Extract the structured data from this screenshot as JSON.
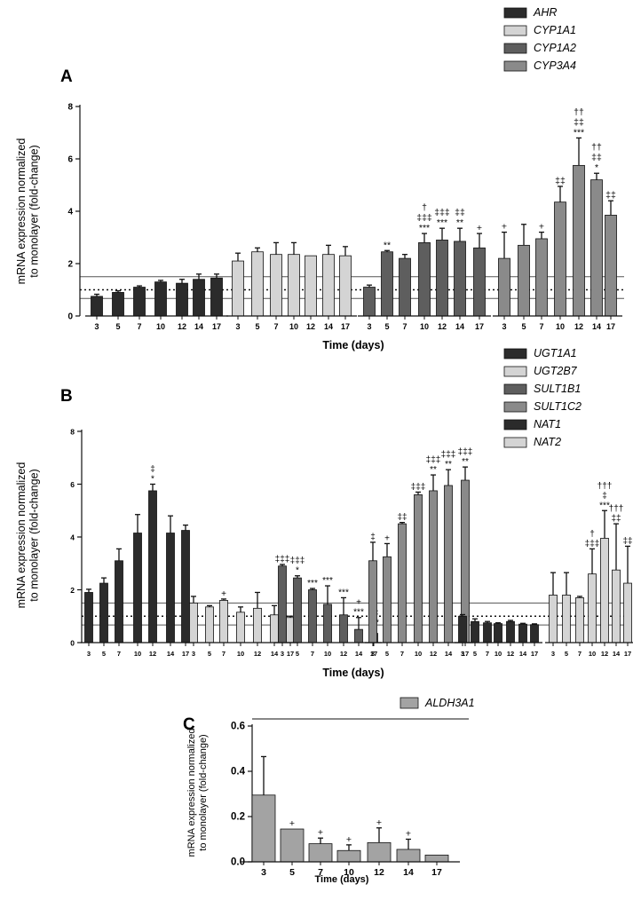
{
  "figure": {
    "panels": [
      "A",
      "B",
      "C"
    ]
  },
  "colors": {
    "AHR": "#2b2b2b",
    "CYP1A1": "#d4d4d4",
    "CYP1A2": "#5e5e5e",
    "CYP3A4": "#8a8a8a",
    "UGT1A1": "#2b2b2b",
    "UGT2B7": "#d4d4d4",
    "SULT1B1": "#5e5e5e",
    "SULT1C2": "#8a8a8a",
    "NAT1": "#2b2b2b",
    "NAT2": "#d4d4d4",
    "ALDH3A1": "#a3a3a3"
  },
  "chart_data": [
    {
      "panel": "A",
      "type": "bar",
      "ylabel": "mRNA expression normalized\nto monolayer (fold-change)",
      "xlabel": "Time (days)",
      "ylim": [
        0,
        8
      ],
      "yticks": [
        0,
        2,
        4,
        6,
        8
      ],
      "categories": [
        "3",
        "5",
        "7",
        "10",
        "12",
        "14",
        "17"
      ],
      "reference_lines": {
        "dotted": 1.0,
        "solid": [
          0.67,
          1.5
        ]
      },
      "legend_position": "top-right",
      "series": [
        {
          "name": "AHR",
          "values": [
            0.75,
            0.9,
            1.1,
            1.3,
            1.25,
            1.4,
            1.45
          ],
          "errors": [
            0.08,
            0.06,
            0.05,
            0.06,
            0.15,
            0.2,
            0.15
          ],
          "annotations": [
            "",
            "",
            "",
            "",
            "",
            "",
            ""
          ]
        },
        {
          "name": "CYP1A1",
          "values": [
            2.1,
            2.45,
            2.35,
            2.35,
            2.3,
            2.35,
            2.3
          ],
          "errors": [
            0.3,
            0.15,
            0.45,
            0.45,
            0.0,
            0.35,
            0.35
          ],
          "annotations": [
            "",
            "",
            "",
            "",
            "",
            "",
            ""
          ]
        },
        {
          "name": "CYP1A2",
          "values": [
            1.1,
            2.45,
            2.2,
            2.8,
            2.9,
            2.85,
            2.6
          ],
          "errors": [
            0.08,
            0.05,
            0.15,
            0.35,
            0.45,
            0.5,
            0.55
          ],
          "annotations": [
            "",
            "**",
            "",
            "†\n‡‡‡\n***",
            "‡‡‡\n***",
            "‡‡\n**",
            "+"
          ]
        },
        {
          "name": "CYP3A4",
          "values": [
            2.2,
            2.7,
            2.95,
            4.35,
            5.75,
            5.2,
            3.85
          ],
          "errors": [
            1.0,
            0.8,
            0.25,
            0.6,
            1.05,
            0.25,
            0.55
          ],
          "annotations": [
            "+",
            "",
            "+",
            "‡‡",
            "††\n‡‡\n***",
            "††\n‡‡\n*",
            "‡‡"
          ]
        }
      ]
    },
    {
      "panel": "B",
      "type": "bar",
      "ylabel": "mRNA expression normalized\nto monolayer (fold-change)",
      "xlabel": "Time (days)",
      "ylim": [
        0,
        8
      ],
      "yticks": [
        0,
        2,
        4,
        6,
        8
      ],
      "categories": [
        "3",
        "5",
        "7",
        "10",
        "12",
        "14",
        "17"
      ],
      "reference_lines": {
        "dotted": 1.0,
        "solid": [
          0.67,
          1.5
        ]
      },
      "legend_position": "top-right",
      "series": [
        {
          "name": "UGT1A1",
          "values": [
            1.9,
            2.25,
            3.1,
            4.15,
            5.75,
            4.15,
            4.25
          ],
          "errors": [
            0.12,
            0.2,
            0.45,
            0.7,
            0.25,
            0.65,
            0.2
          ],
          "annotations": [
            "",
            "",
            "",
            "",
            "‡\n*",
            "",
            ""
          ]
        },
        {
          "name": "UGT2B7",
          "values": [
            1.5,
            1.35,
            1.6,
            1.15,
            1.3,
            1.05,
            0.95
          ],
          "errors": [
            0.25,
            0.05,
            0.05,
            0.2,
            0.6,
            0.35,
            0.05
          ],
          "annotations": [
            "",
            "",
            "+",
            "",
            "",
            "",
            ""
          ]
        },
        {
          "name": "SULT1B1",
          "values": [
            2.9,
            2.45,
            2.0,
            1.45,
            1.05,
            0.5,
            0.35
          ],
          "errors": [
            0.06,
            0.08,
            0.05,
            0.7,
            0.65,
            0.45,
            0.2
          ],
          "annotations": [
            "‡‡‡",
            "‡‡‡\n*",
            "***",
            "***",
            "***",
            "+\n***",
            "‡‡\n***"
          ]
        },
        {
          "name": "SULT1C2",
          "values": [
            3.1,
            3.25,
            4.5,
            5.6,
            5.75,
            5.95,
            6.15
          ],
          "errors": [
            0.7,
            0.5,
            0.05,
            0.1,
            0.6,
            0.6,
            0.5
          ],
          "annotations": [
            "‡",
            "+",
            "‡‡",
            "‡‡‡",
            "‡‡‡\n**",
            "‡‡‡\n**",
            "‡‡‡\n**"
          ]
        },
        {
          "name": "NAT1",
          "values": [
            1.0,
            0.8,
            0.75,
            0.72,
            0.8,
            0.7,
            0.68
          ],
          "errors": [
            0.06,
            0.1,
            0.05,
            0.03,
            0.04,
            0.03,
            0.03
          ],
          "annotations": [
            "",
            "",
            "",
            "",
            "",
            "",
            ""
          ]
        },
        {
          "name": "NAT2",
          "values": [
            1.8,
            1.8,
            1.7,
            2.6,
            3.95,
            2.75,
            2.25
          ],
          "errors": [
            0.85,
            0.85,
            0.05,
            0.95,
            1.05,
            1.75,
            1.4
          ],
          "annotations": [
            "",
            "",
            "",
            "†\n‡‡‡",
            "†††\n‡\n***",
            "†††\n‡‡",
            "‡‡"
          ]
        }
      ]
    },
    {
      "panel": "C",
      "type": "bar",
      "ylabel": "mRNA expression normalized\nto monolayer (fold-change)",
      "xlabel": "Time (days)",
      "ylim": [
        0,
        0.6
      ],
      "yticks": [
        0.0,
        0.2,
        0.4,
        0.6
      ],
      "categories": [
        "3",
        "5",
        "7",
        "10",
        "12",
        "14",
        "17"
      ],
      "legend_position": "top-right",
      "series": [
        {
          "name": "ALDH3A1",
          "values": [
            0.295,
            0.145,
            0.08,
            0.05,
            0.085,
            0.055,
            0.03
          ],
          "errors": [
            0.17,
            0.0,
            0.025,
            0.025,
            0.065,
            0.045,
            0.0
          ],
          "annotations": [
            "",
            "+",
            "+",
            "+",
            "+",
            "+",
            ""
          ]
        }
      ]
    }
  ]
}
